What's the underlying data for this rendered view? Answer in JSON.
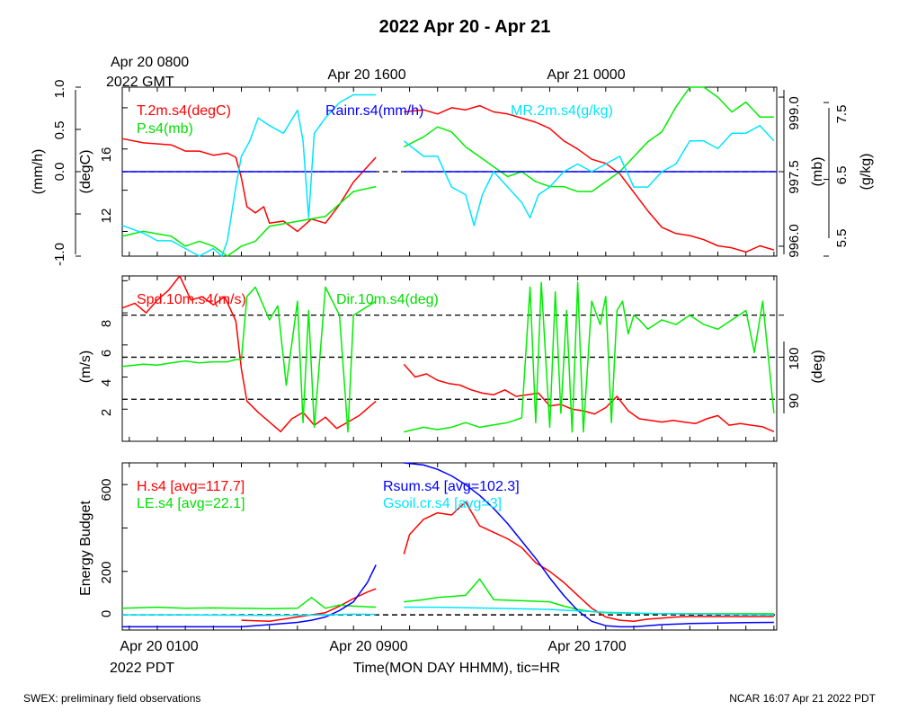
{
  "header": {
    "title": "2022 Apr 20 - Apr 21",
    "top_tz_time": "Apr 20 0800",
    "top_tz_label": "2022 GMT",
    "top_ticks": [
      "Apr 20 1600",
      "Apr 21 0000"
    ]
  },
  "bottom_axis": {
    "tick_labels": [
      "Apr 20 0100",
      "Apr 20 0900",
      "Apr 20 1700"
    ],
    "tz_label": "2022 PDT",
    "xlabel": "Time(MON DAY HHMM), tic=HR"
  },
  "footer": {
    "left": "SWEX: preliminary field observations",
    "right": "NCAR 16:07 Apr 21 2022 PDT"
  },
  "colors": {
    "red": "#ff0000",
    "green": "#00ee00",
    "blue": "#0000ff",
    "cyan": "#00e5ff",
    "black": "#000000"
  },
  "chart_data": [
    {
      "type": "line",
      "panel": "top",
      "x_unit": "hours since Apr 20 0000 PDT",
      "xlim": [
        0.75,
        24.1
      ],
      "axes": {
        "left_outer": {
          "label": "(mm/h)",
          "ticks": [
            "-1.0",
            "0.0",
            "0.5",
            "1.0"
          ],
          "range": [
            -1,
            1
          ]
        },
        "left_inner": {
          "label": "(degC)",
          "ticks": [
            "12",
            "16"
          ],
          "range": [
            10.8,
            19.0
          ]
        },
        "right_inner": {
          "label": "(mb)",
          "ticks": [
            "996.0",
            "997.5",
            "999.0"
          ],
          "range": [
            995.8,
            999.2
          ]
        },
        "right_outer": {
          "label": "(g/kg)",
          "ticks": [
            "5.5",
            "6.5",
            "7.5"
          ],
          "range": [
            5.5,
            7.7
          ]
        }
      },
      "legend": [
        "T.2m.s4(degC)",
        "P.s4(mb)",
        "Rainr.s4(mm/h)",
        "MR.2m.s4(g/kg)"
      ],
      "series": [
        {
          "name": "T.2m.s4(degC)",
          "axis": "left_inner",
          "color": "red",
          "x": [
            0.75,
            1.5,
            2.5,
            3.0,
            3.5,
            4.0,
            4.5,
            4.8,
            5.0,
            5.2,
            5.5,
            5.8,
            6.0,
            6.5,
            7.0,
            7.5,
            8.0,
            8.5,
            9.0,
            9.8,
            10.0,
            10.8,
            11.5,
            12.0,
            12.5,
            13.0,
            13.5,
            14.0,
            14.5,
            15.0,
            15.5,
            16.0,
            16.5,
            17.0,
            17.5,
            18.0,
            18.5,
            19.0,
            19.5,
            20.0,
            20.5,
            21.0,
            21.5,
            22.0,
            22.5,
            23.0,
            23.5,
            24.0
          ],
          "y": [
            16.5,
            16.3,
            16.2,
            15.9,
            15.9,
            15.7,
            15.8,
            15.6,
            14.6,
            13.2,
            12.9,
            13.2,
            12.4,
            12.5,
            12.0,
            12.6,
            12.4,
            13.3,
            14.4,
            15.6,
            null,
            17.8,
            17.9,
            17.7,
            18.0,
            17.9,
            18.1,
            17.8,
            17.7,
            17.5,
            17.3,
            17.0,
            16.4,
            16.0,
            15.5,
            15.3,
            14.8,
            13.9,
            13.0,
            12.2,
            11.9,
            11.8,
            11.6,
            11.3,
            11.2,
            11.0,
            11.3,
            11.1
          ]
        },
        {
          "name": "P.s4(mb)",
          "axis": "right_inner",
          "color": "green",
          "x": [
            0.75,
            1.5,
            2.5,
            3.0,
            3.5,
            4.0,
            4.5,
            5.0,
            5.5,
            6.0,
            7.0,
            8.0,
            9.0,
            9.8,
            10.0,
            10.8,
            11.5,
            12.0,
            12.5,
            13.0,
            13.5,
            14.0,
            14.5,
            15.0,
            15.5,
            16.0,
            16.5,
            17.0,
            17.5,
            18.0,
            18.5,
            19.0,
            19.5,
            20.0,
            20.5,
            21.0,
            21.5,
            22.0,
            22.5,
            23.0,
            23.5,
            24.0
          ],
          "y": [
            996.2,
            996.3,
            996.2,
            996.0,
            996.1,
            996.0,
            995.8,
            996.0,
            996.1,
            996.4,
            996.5,
            996.6,
            997.1,
            997.2,
            null,
            998.0,
            998.2,
            998.4,
            998.3,
            998.0,
            997.8,
            997.6,
            997.4,
            997.5,
            997.3,
            997.2,
            997.2,
            997.1,
            997.1,
            997.3,
            997.5,
            997.8,
            998.1,
            998.3,
            998.8,
            999.2,
            999.2,
            999.0,
            998.7,
            998.9,
            998.6,
            998.6
          ]
        },
        {
          "name": "Rainr.s4(mm/h)",
          "axis": "left_outer",
          "color": "blue",
          "x": [
            0.75,
            9.8,
            10.0,
            10.8,
            24.1
          ],
          "y": [
            0.0,
            0.0,
            null,
            0.0,
            0.0
          ]
        },
        {
          "name": "MR.2m.s4(g/kg)",
          "axis": "right_outer",
          "color": "cyan",
          "x": [
            0.75,
            1.5,
            2.0,
            2.5,
            3.0,
            3.5,
            4.0,
            4.3,
            4.5,
            4.8,
            5.0,
            5.3,
            5.6,
            6.0,
            6.5,
            7.0,
            7.2,
            7.4,
            7.6,
            8.0,
            8.5,
            9.0,
            9.5,
            9.8,
            10.0,
            10.8,
            11.5,
            12.0,
            12.5,
            13.0,
            13.3,
            13.6,
            14.0,
            14.5,
            15.0,
            15.3,
            15.6,
            16.0,
            16.5,
            17.0,
            17.5,
            18.0,
            18.5,
            19.0,
            19.5,
            20.0,
            20.5,
            21.0,
            21.5,
            22.0,
            22.5,
            23.0,
            23.5,
            24.0
          ],
          "y": [
            5.9,
            5.8,
            5.7,
            5.7,
            5.6,
            5.5,
            5.6,
            5.4,
            5.7,
            6.4,
            6.8,
            7.0,
            7.3,
            7.2,
            7.1,
            7.4,
            7.0,
            6.0,
            7.1,
            7.3,
            7.5,
            7.6,
            7.6,
            7.6,
            null,
            7.0,
            6.8,
            6.8,
            6.4,
            6.3,
            5.9,
            6.3,
            6.6,
            6.4,
            6.2,
            6.0,
            6.3,
            6.4,
            6.6,
            6.7,
            6.6,
            6.7,
            6.8,
            6.4,
            6.4,
            6.6,
            6.7,
            7.0,
            7.0,
            6.9,
            7.1,
            7.1,
            7.2,
            7.0
          ]
        }
      ]
    },
    {
      "type": "line",
      "panel": "middle",
      "x_unit": "hours since Apr 20 0000 PDT",
      "xlim": [
        0.75,
        24.1
      ],
      "axes": {
        "left": {
          "label": "(m/s)",
          "ticks": [
            "2",
            "4",
            "6",
            "8"
          ],
          "range": [
            0,
            10.3
          ]
        },
        "right": {
          "label": "(deg)",
          "ticks": [
            "90",
            "180"
          ],
          "range": [
            0,
            354
          ]
        }
      },
      "legend": [
        "Spd.10m.s4(m/s)",
        "Dir.10m.s4(deg)"
      ],
      "series": [
        {
          "name": "Spd.10m.s4(m/s)",
          "axis": "left",
          "color": "red",
          "x": [
            0.75,
            1.2,
            1.6,
            2.0,
            2.4,
            2.8,
            3.2,
            3.6,
            4.0,
            4.4,
            4.8,
            5.0,
            5.2,
            5.6,
            6.0,
            6.4,
            6.8,
            7.2,
            7.6,
            8.0,
            8.4,
            8.8,
            9.2,
            9.8,
            10.0,
            10.8,
            11.2,
            11.6,
            12.0,
            12.4,
            12.8,
            13.2,
            13.6,
            14.0,
            14.4,
            14.8,
            15.2,
            15.6,
            16.0,
            16.4,
            16.8,
            17.2,
            17.6,
            18.0,
            18.4,
            18.8,
            19.2,
            19.6,
            20.0,
            20.4,
            20.8,
            21.2,
            21.6,
            22.0,
            22.4,
            22.8,
            23.2,
            23.6,
            24.0
          ],
          "y": [
            8.3,
            8.6,
            8.0,
            8.8,
            9.4,
            10.3,
            8.8,
            9.0,
            8.5,
            9.0,
            7.5,
            4.5,
            2.5,
            1.8,
            1.2,
            0.6,
            1.4,
            1.8,
            1.0,
            1.5,
            0.8,
            1.2,
            1.6,
            2.5,
            null,
            4.8,
            4.0,
            4.2,
            3.8,
            3.6,
            3.5,
            3.2,
            3.0,
            2.9,
            3.2,
            2.8,
            2.9,
            3.0,
            2.2,
            2.3,
            2.0,
            1.9,
            1.7,
            2.1,
            2.8,
            1.9,
            1.4,
            1.3,
            1.2,
            1.3,
            1.2,
            1.1,
            1.4,
            1.6,
            1.0,
            1.1,
            1.0,
            0.9,
            0.6
          ]
        },
        {
          "name": "Dir.10m.s4(deg)",
          "axis": "right",
          "color": "green",
          "x": [
            0.75,
            1.5,
            2.0,
            2.5,
            3.0,
            3.5,
            4.0,
            4.5,
            4.8,
            5.0,
            5.2,
            5.5,
            6.0,
            6.3,
            6.6,
            7.0,
            7.2,
            7.4,
            7.6,
            8.0,
            8.5,
            8.8,
            9.0,
            9.8,
            10.0,
            10.8,
            11.5,
            12.0,
            12.5,
            13.0,
            13.5,
            14.0,
            14.5,
            15.0,
            15.3,
            15.5,
            15.7,
            16.0,
            16.2,
            16.4,
            16.6,
            16.8,
            17.0,
            17.2,
            17.5,
            17.8,
            18.0,
            18.2,
            18.4,
            18.6,
            18.8,
            19.0,
            19.2,
            19.5,
            20.0,
            20.5,
            21.0,
            21.5,
            22.0,
            22.5,
            23.0,
            23.3,
            23.6,
            24.0
          ],
          "y": [
            160,
            165,
            163,
            168,
            172,
            168,
            170,
            170,
            175,
            175,
            310,
            330,
            260,
            290,
            120,
            300,
            40,
            280,
            30,
            330,
            270,
            20,
            270,
            300,
            null,
            20,
            30,
            25,
            30,
            40,
            30,
            35,
            40,
            50,
            330,
            40,
            340,
            30,
            320,
            60,
            280,
            20,
            340,
            20,
            300,
            250,
            310,
            40,
            280,
            300,
            230,
            270,
            260,
            240,
            260,
            250,
            270,
            250,
            240,
            260,
            280,
            190,
            300,
            60
          ]
        }
      ]
    },
    {
      "type": "line",
      "panel": "bottom",
      "x_unit": "hours since Apr 20 0000 PDT",
      "xlim": [
        0.75,
        24.1
      ],
      "axes": {
        "left": {
          "label": "Energy Budget",
          "ticks": [
            "0",
            "200",
            "600"
          ],
          "range": [
            -70,
            700
          ]
        }
      },
      "legend": [
        "H.s4 [avg=117.7]",
        "LE.s4 [avg=22.1]",
        "Rsum.s4 [avg=102.3]",
        "Gsoil.cr.s4 [avg=3]"
      ],
      "series": [
        {
          "name": "H.s4 [avg=117.7]",
          "color": "red",
          "x": [
            5.0,
            6.0,
            7.0,
            8.0,
            8.5,
            9.0,
            9.5,
            9.8,
            10.0,
            10.8,
            11.0,
            11.5,
            12.0,
            12.5,
            13.0,
            13.5,
            14.0,
            14.5,
            15.0,
            15.5,
            16.0,
            16.5,
            17.0,
            17.5,
            18.0,
            18.5,
            19.0,
            19.5,
            20.0,
            20.5,
            21.0,
            21.5,
            22.0,
            22.5,
            23.0,
            23.5,
            24.0
          ],
          "y": [
            -25,
            -30,
            -10,
            10,
            40,
            75,
            105,
            120,
            null,
            280,
            370,
            440,
            470,
            460,
            520,
            410,
            380,
            350,
            310,
            240,
            200,
            150,
            90,
            30,
            -10,
            -25,
            -30,
            -20,
            -15,
            -10,
            -8,
            -8,
            -8,
            -8,
            -8,
            -8,
            -8
          ]
        },
        {
          "name": "LE.s4 [avg=22.1]",
          "color": "green",
          "x": [
            0.75,
            2.0,
            3.0,
            4.0,
            5.0,
            6.0,
            7.0,
            7.5,
            8.0,
            8.5,
            9.0,
            9.8,
            10.0,
            10.8,
            11.5,
            12.0,
            13.0,
            13.5,
            14.0,
            15.0,
            16.0,
            16.5,
            17.0,
            17.5,
            18.0,
            20.0,
            24.0
          ],
          "y": [
            30,
            35,
            30,
            32,
            30,
            28,
            30,
            80,
            30,
            45,
            40,
            35,
            null,
            60,
            70,
            80,
            90,
            165,
            70,
            65,
            60,
            40,
            25,
            15,
            10,
            5,
            5
          ]
        },
        {
          "name": "Rsum.s4 [avg=102.3]",
          "color": "blue",
          "x": [
            0.75,
            2.0,
            3.0,
            4.0,
            5.0,
            6.0,
            7.0,
            7.5,
            8.0,
            8.5,
            9.0,
            9.5,
            9.8,
            10.0,
            10.8,
            11.5,
            12.0,
            12.5,
            13.0,
            13.5,
            14.0,
            14.5,
            15.0,
            15.5,
            16.0,
            16.5,
            17.0,
            17.5,
            18.0,
            18.5,
            19.0,
            19.5,
            20.0,
            21.0,
            22.0,
            23.0,
            24.0
          ],
          "y": [
            -55,
            -55,
            -55,
            -55,
            -55,
            -45,
            -35,
            -25,
            -10,
            20,
            60,
            150,
            230,
            null,
            700,
            690,
            670,
            640,
            600,
            550,
            490,
            420,
            340,
            260,
            170,
            90,
            20,
            -30,
            -50,
            -55,
            -55,
            -50,
            -45,
            -40,
            -38,
            -36,
            -35
          ]
        },
        {
          "name": "Gsoil.cr.s4 [avg=3]",
          "color": "cyan",
          "x": [
            0.75,
            3.0,
            5.0,
            6.0,
            7.0,
            8.0,
            9.0,
            9.8,
            10.0,
            10.8,
            12.0,
            14.0,
            16.0,
            18.0,
            20.0,
            24.0
          ],
          "y": [
            0,
            0,
            -2,
            -3,
            -2,
            0,
            3,
            2,
            null,
            35,
            35,
            30,
            25,
            12,
            5,
            0
          ]
        }
      ]
    }
  ]
}
